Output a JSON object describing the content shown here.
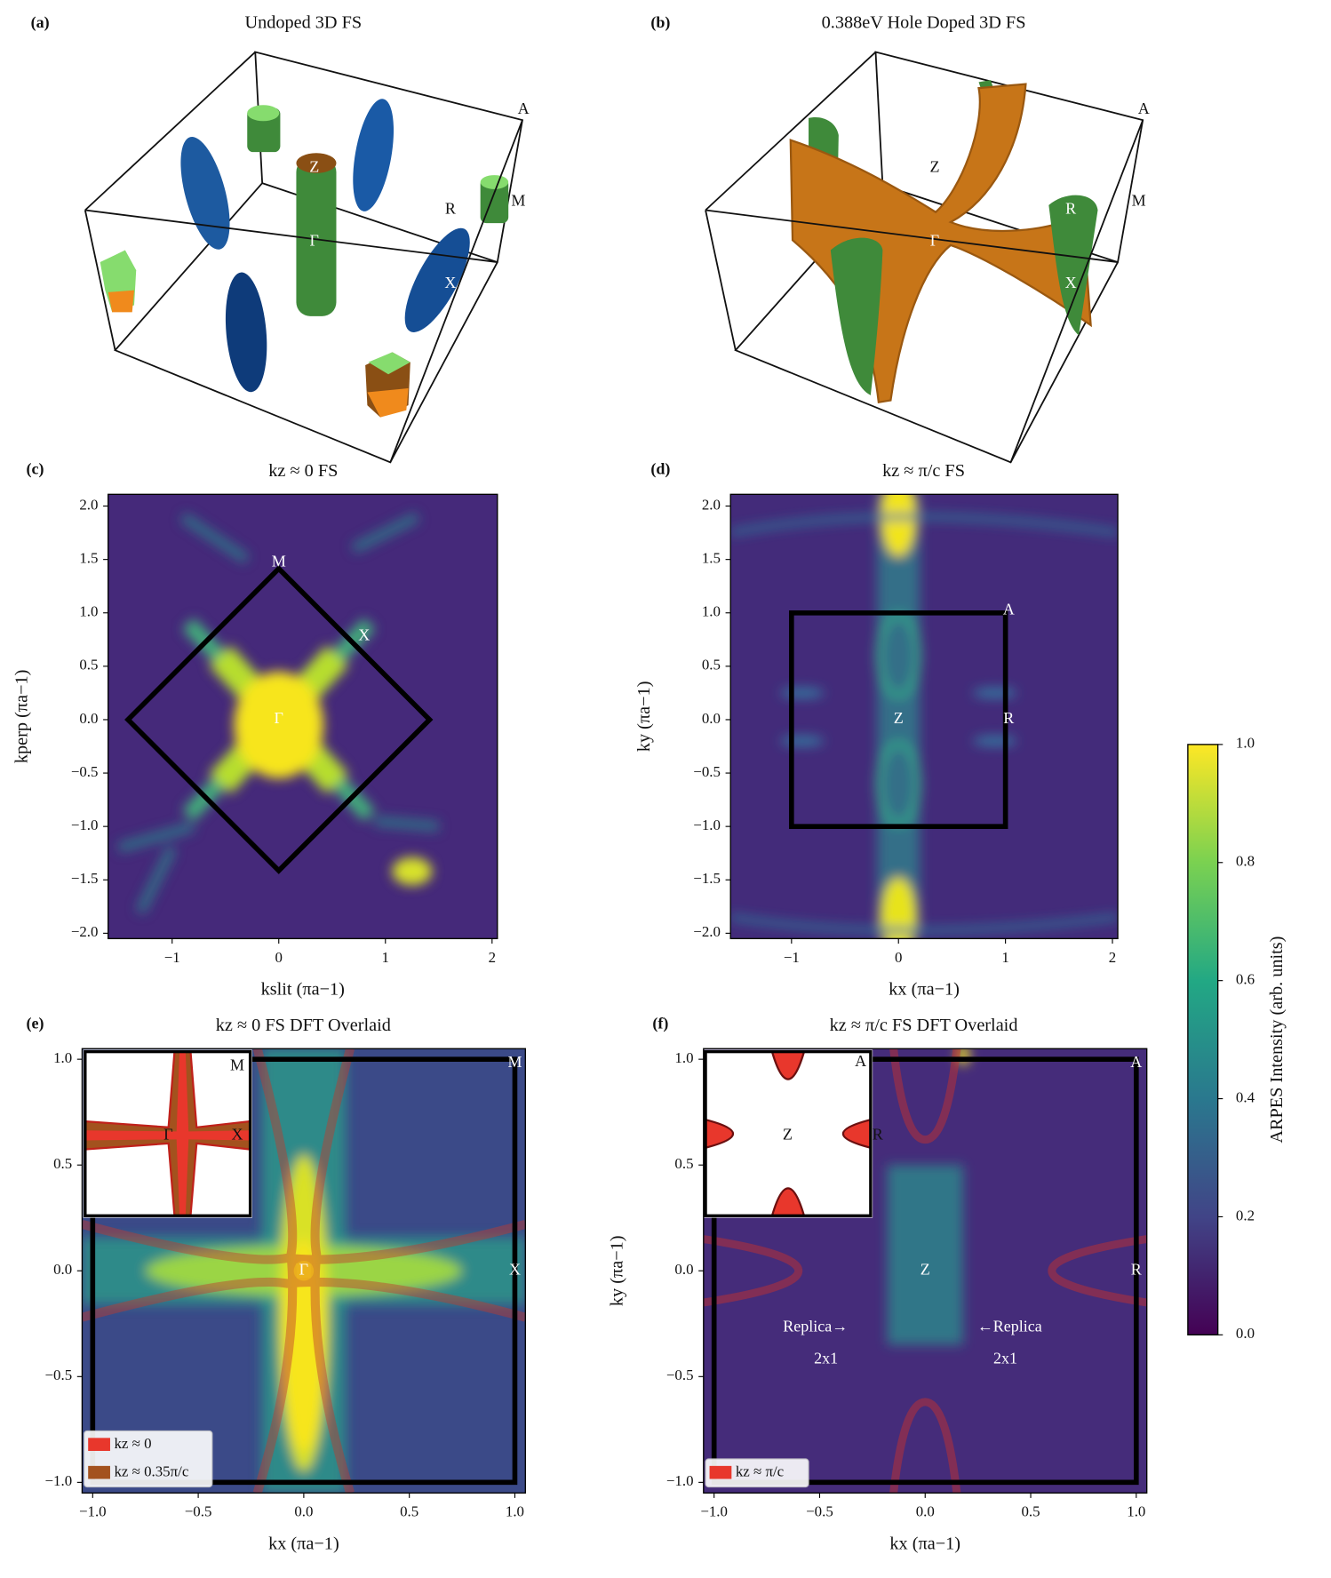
{
  "chart_data": [
    {
      "type": "surface3d",
      "panel_label": "(a)",
      "title": "Undoped 3D FS",
      "annotations": [
        "A",
        "Z",
        "M",
        "R",
        "Γ",
        "X"
      ]
    },
    {
      "type": "surface3d",
      "panel_label": "(b)",
      "title": "0.388eV Hole Doped 3D FS",
      "annotations": [
        "A",
        "Z",
        "M",
        "R",
        "Γ",
        "X"
      ]
    },
    {
      "type": "heatmap",
      "panel_label": "(c)",
      "title": "kz ≈ 0 FS",
      "xlabel": "kslit (πa−1)",
      "ylabel": "kperp (πa−1)",
      "xlim": [
        -1.6,
        2.05
      ],
      "ylim": [
        -2.05,
        2.11
      ],
      "xticks": [
        {
          "value": -1,
          "label": "−1"
        },
        0,
        1,
        2
      ],
      "yticks": [
        {
          "value": -2,
          "label": "−2.0"
        },
        {
          "value": -1.5,
          "label": "−1.5"
        },
        {
          "value": -1,
          "label": "−1.0"
        },
        {
          "value": -0.5,
          "label": "−0.5"
        },
        {
          "value": 0,
          "label": "0.0"
        },
        0.5,
        {
          "value": 1,
          "label": "1.0"
        },
        1.5,
        {
          "value": 2,
          "label": "2.0"
        }
      ],
      "annotations": [
        "M",
        "X",
        "Γ"
      ]
    },
    {
      "type": "heatmap",
      "panel_label": "(d)",
      "title": "kz ≈ π/c FS",
      "xlabel": "kx (πa−1)",
      "ylabel": "ky (πa−1)",
      "xlim": [
        -1.57,
        2.05
      ],
      "ylim": [
        -2.05,
        2.11
      ],
      "xticks": [
        {
          "value": -1,
          "label": "−1"
        },
        0,
        1,
        2
      ],
      "yticks": [
        {
          "value": -2,
          "label": "−2.0"
        },
        {
          "value": -1.5,
          "label": "−1.5"
        },
        {
          "value": -1,
          "label": "−1.0"
        },
        {
          "value": -0.5,
          "label": "−0.5"
        },
        {
          "value": 0,
          "label": "0.0"
        },
        0.5,
        {
          "value": 1,
          "label": "1.0"
        },
        1.5,
        {
          "value": 2,
          "label": "2.0"
        }
      ],
      "annotations": [
        "A",
        "Z",
        "R"
      ]
    },
    {
      "type": "heatmap",
      "panel_label": "(e)",
      "title": "kz ≈ 0 FS DFT Overlaid",
      "xlabel": "kx (πa−1)",
      "xlim": [
        -1.05,
        1.05
      ],
      "ylim": [
        -1.05,
        1.05
      ],
      "xticks": [
        {
          "value": -1,
          "label": "−1.0"
        },
        {
          "value": -0.5,
          "label": "−0.5"
        },
        {
          "value": 0,
          "label": "0.0"
        },
        0.5,
        {
          "value": 1,
          "label": "1.0"
        }
      ],
      "yticks": [
        {
          "value": -1,
          "label": "−1.0"
        },
        {
          "value": -0.5,
          "label": "−0.5"
        },
        {
          "value": 0,
          "label": "0.0"
        },
        0.5,
        {
          "value": 1,
          "label": "1.0"
        }
      ],
      "annotations": [
        "M",
        "X",
        "Γ"
      ],
      "inset_annotations": [
        "M",
        "Γ",
        "X"
      ],
      "legend": {
        "position": "lower left",
        "entries": [
          {
            "name": "kz ≈ 0",
            "color": "#e8372c"
          },
          {
            "name": "kz ≈ 0.35π/c",
            "color": "#a3521e"
          }
        ]
      }
    },
    {
      "type": "heatmap",
      "panel_label": "(f)",
      "title": "kz ≈ π/c FS DFT Overlaid",
      "xlabel": "kx (πa−1)",
      "ylabel": "ky (πa−1)",
      "xlim": [
        -1.05,
        1.05
      ],
      "ylim": [
        -1.05,
        1.05
      ],
      "xticks": [
        {
          "value": -1,
          "label": "−1.0"
        },
        {
          "value": -0.5,
          "label": "−0.5"
        },
        {
          "value": 0,
          "label": "0.0"
        },
        0.5,
        {
          "value": 1,
          "label": "1.0"
        }
      ],
      "yticks": [
        {
          "value": -1,
          "label": "−1.0"
        },
        {
          "value": -0.5,
          "label": "−0.5"
        },
        {
          "value": 0,
          "label": "0.0"
        },
        0.5,
        {
          "value": 1,
          "label": "1.0"
        }
      ],
      "annotations": [
        "A",
        "Z",
        "R",
        "Replica→",
        "←Replica",
        "2x1",
        "2x1"
      ],
      "inset_annotations": [
        "A",
        "Z",
        "R"
      ],
      "legend": {
        "position": "lower left",
        "entries": [
          {
            "name": "kz ≈ π/c",
            "color": "#e8372c"
          }
        ]
      }
    },
    {
      "type": "colorbar",
      "label": "ARPES Intensity (arb. units)",
      "colormap": "viridis",
      "ylim": [
        0,
        1
      ],
      "yticks": [
        {
          "value": 0,
          "label": "0.0"
        },
        {
          "value": 0.2,
          "label": "0.2"
        },
        {
          "value": 0.4,
          "label": "0.4"
        },
        {
          "value": 0.6,
          "label": "0.6"
        },
        {
          "value": 0.8,
          "label": "0.8"
        },
        {
          "value": 1,
          "label": "1.0"
        }
      ]
    }
  ]
}
